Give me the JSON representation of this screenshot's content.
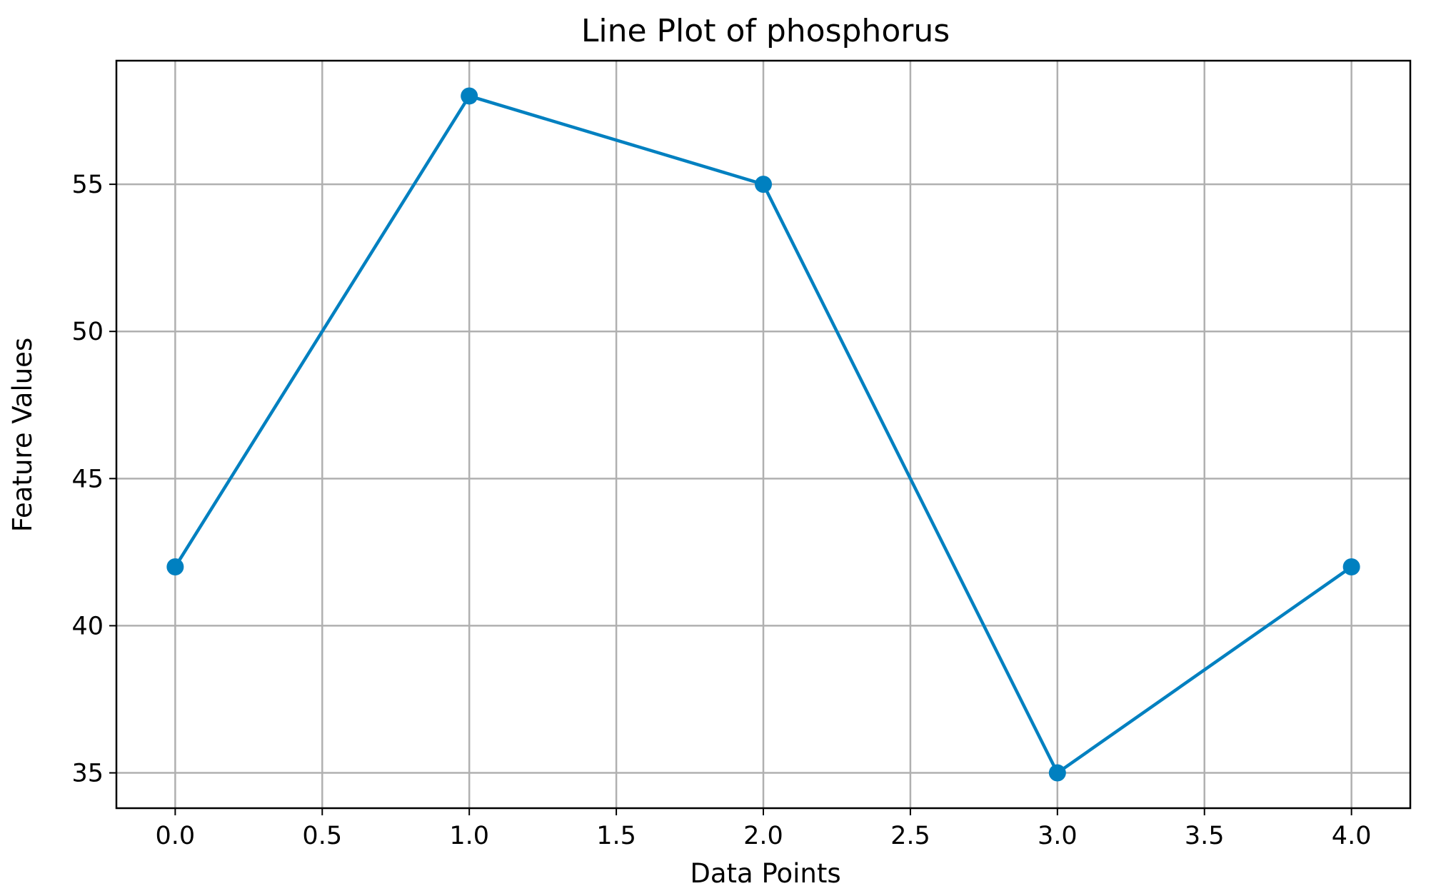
{
  "chart_data": {
    "type": "line",
    "title": "Line Plot of phosphorus",
    "xlabel": "Data Points",
    "ylabel": "Feature Values",
    "x": [
      0,
      1,
      2,
      3,
      4
    ],
    "series": [
      {
        "values": [
          42,
          58,
          55,
          35,
          42
        ],
        "color": "#0080c0",
        "marker": "circle"
      }
    ],
    "xlim": [
      -0.2,
      4.2
    ],
    "ylim": [
      33.8,
      59.2
    ],
    "xticks": [
      "0.0",
      "0.5",
      "1.0",
      "1.5",
      "2.0",
      "2.5",
      "3.0",
      "3.5",
      "4.0"
    ],
    "yticks": [
      "35",
      "40",
      "45",
      "50",
      "55"
    ],
    "grid": true
  }
}
